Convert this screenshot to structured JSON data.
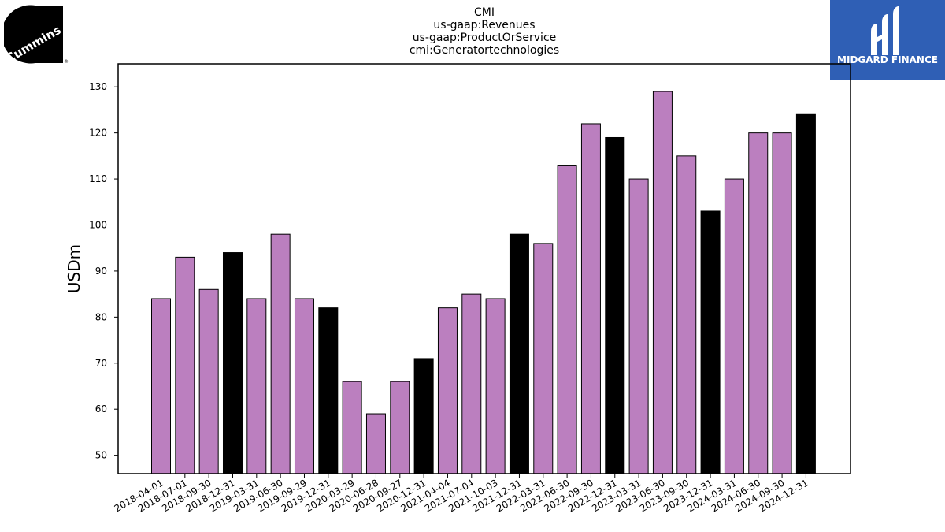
{
  "logos": {
    "left_text": "Cummins",
    "right_text": "MIDGARD FINANCE"
  },
  "colors": {
    "quarter_bar": "#bb7fbf",
    "year_end_bar": "#000000",
    "midgard_blue": "#2f5fb5"
  },
  "chart_data": {
    "type": "bar",
    "title_lines": [
      "CMI",
      "us-gaap:Revenues",
      "us-gaap:ProductOrService",
      "cmi:Generatortechnologies"
    ],
    "xlabel": "",
    "ylabel": "USDm",
    "ylim": [
      46,
      135
    ],
    "yticks": [
      50,
      60,
      70,
      80,
      90,
      100,
      110,
      120,
      130
    ],
    "grid": false,
    "categories": [
      "2018-04-01",
      "2018-07-01",
      "2018-09-30",
      "2018-12-31",
      "2019-03-31",
      "2019-06-30",
      "2019-09-29",
      "2019-12-31",
      "2020-03-29",
      "2020-06-28",
      "2020-09-27",
      "2020-12-31",
      "2021-04-04",
      "2021-07-04",
      "2021-10-03",
      "2021-12-31",
      "2022-03-31",
      "2022-06-30",
      "2022-09-30",
      "2022-12-31",
      "2023-03-31",
      "2023-06-30",
      "2023-09-30",
      "2023-12-31",
      "2024-03-31",
      "2024-06-30",
      "2024-09-30",
      "2024-12-31"
    ],
    "values": [
      84,
      93,
      86,
      94,
      84,
      98,
      84,
      82,
      66,
      59,
      66,
      71,
      82,
      85,
      84,
      98,
      96,
      113,
      122,
      119,
      110,
      129,
      115,
      103,
      110,
      120,
      120,
      124
    ],
    "year_end": [
      false,
      false,
      false,
      true,
      false,
      false,
      false,
      true,
      false,
      false,
      false,
      true,
      false,
      false,
      false,
      true,
      false,
      false,
      false,
      true,
      false,
      false,
      false,
      true,
      false,
      false,
      false,
      true
    ]
  }
}
